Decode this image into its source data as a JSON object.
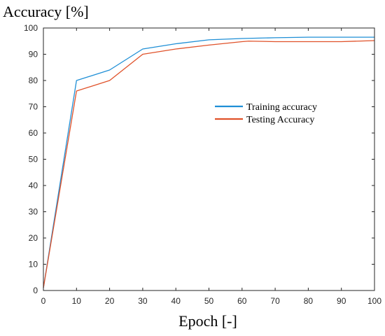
{
  "chart_data": {
    "type": "line",
    "title": "",
    "xlabel": "Epoch [-]",
    "ylabel": "Accuracy [%]",
    "xlim": [
      0,
      100
    ],
    "ylim": [
      0,
      100
    ],
    "xticks": [
      0,
      10,
      20,
      30,
      40,
      50,
      60,
      70,
      80,
      90,
      100
    ],
    "yticks": [
      0,
      10,
      20,
      30,
      40,
      50,
      60,
      70,
      80,
      90,
      100
    ],
    "grid": false,
    "legend_position": "center-right",
    "series": [
      {
        "name": "Training accuracy",
        "color": "#1f8fd6",
        "x": [
          0,
          10,
          20,
          30,
          40,
          50,
          60,
          70,
          80,
          90,
          100
        ],
        "y": [
          1,
          80,
          84,
          92,
          94,
          95.5,
          96,
          96.3,
          96.5,
          96.5,
          96.5
        ]
      },
      {
        "name": "Testing Accuracy",
        "color": "#e0522a",
        "x": [
          0,
          10,
          20,
          30,
          40,
          50,
          60,
          62,
          70,
          80,
          90,
          100
        ],
        "y": [
          1,
          76,
          80,
          90,
          92,
          93.5,
          94.8,
          95,
          94.8,
          94.8,
          94.8,
          95.2
        ]
      }
    ]
  }
}
